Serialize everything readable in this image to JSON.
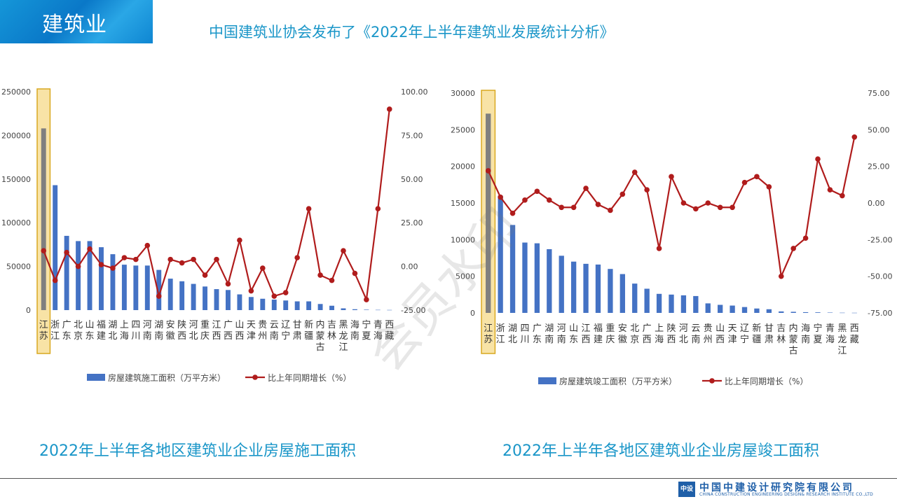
{
  "header": {
    "section": "建筑业",
    "subtitle": "中国建筑业协会发布了《2022年上半年建筑业发展统计分析》"
  },
  "watermark": "会员水印",
  "captions": {
    "left": "2022年上半年各地区建筑业企业房屋施工面积",
    "right": "2022年上半年各地区建筑业企业房屋竣工面积"
  },
  "footer": {
    "logo_mark": "中设",
    "company_cn": "中国中建设计研究院有限公司",
    "company_en": "CHINA CONSTRUCTION ENGINEERING DESIGN& RESEARCH INSTITUTE CO.,LTD"
  },
  "colors": {
    "bar": "#4472c4",
    "line": "#b01c1c",
    "highlight_fill": "#f8e3a6",
    "highlight_stroke": "#d9a820",
    "accent": "#1a96c8"
  },
  "chart_data": [
    {
      "type": "bar",
      "categories": [
        "江苏",
        "浙江",
        "广东",
        "北京",
        "山东",
        "福建",
        "湖北",
        "上海",
        "四川",
        "河南",
        "湖南",
        "安徽",
        "陕西",
        "河北",
        "重庆",
        "江西",
        "广西",
        "山西",
        "天津",
        "贵州",
        "云南",
        "辽宁",
        "甘肃",
        "新疆",
        "内蒙古",
        "吉林",
        "黑龙江",
        "海南",
        "宁夏",
        "青海",
        "西藏"
      ],
      "category_lines": [
        [
          "江",
          "苏"
        ],
        [
          "浙",
          "江"
        ],
        [
          "广",
          "东"
        ],
        [
          "北",
          "京"
        ],
        [
          "山",
          "东"
        ],
        [
          "福",
          "建"
        ],
        [
          "湖",
          "北"
        ],
        [
          "上",
          "海"
        ],
        [
          "四",
          "川"
        ],
        [
          "河",
          "南"
        ],
        [
          "湖",
          "南"
        ],
        [
          "安",
          "徽"
        ],
        [
          "陕",
          "西"
        ],
        [
          "河",
          "北"
        ],
        [
          "重",
          "庆"
        ],
        [
          "江",
          "西"
        ],
        [
          "广",
          "西"
        ],
        [
          "山",
          "西"
        ],
        [
          "天",
          "津"
        ],
        [
          "贵",
          "州"
        ],
        [
          "云",
          "南"
        ],
        [
          "辽",
          "宁"
        ],
        [
          "甘",
          "肃"
        ],
        [
          "新",
          "疆"
        ],
        [
          "内",
          "蒙",
          "古"
        ],
        [
          "吉",
          "林"
        ],
        [
          "黑",
          "龙",
          "江"
        ],
        [
          "海",
          "南"
        ],
        [
          "宁",
          "夏"
        ],
        [
          "青",
          "海"
        ],
        [
          "西",
          "藏"
        ]
      ],
      "series": [
        {
          "name": "房屋建筑施工面积（万平方米）",
          "kind": "bar",
          "axis": "left",
          "values": [
            208000,
            143000,
            85000,
            79000,
            79000,
            72000,
            64000,
            52000,
            51000,
            51000,
            46000,
            36000,
            33000,
            30000,
            27000,
            24000,
            23000,
            18000,
            15000,
            13000,
            12000,
            11000,
            10000,
            10000,
            7000,
            5000,
            2000,
            1000,
            500,
            300,
            200
          ]
        },
        {
          "name": "比上年同期增长（%）",
          "kind": "line",
          "axis": "right",
          "values": [
            9,
            -8,
            8,
            0,
            10,
            1,
            -1,
            5,
            4,
            12,
            -17,
            4,
            2,
            4,
            -5,
            4,
            -10,
            15,
            -14,
            -1,
            -17,
            -15,
            5,
            33,
            -5,
            -8,
            9,
            -4,
            -19,
            33,
            90
          ]
        }
      ],
      "y_left": {
        "min": 0,
        "max": 250000,
        "ticks": [
          "250000",
          "200000",
          "150000",
          "100000",
          "50000",
          "0"
        ]
      },
      "y_right": {
        "min": -25,
        "max": 100,
        "ticks": [
          "100.00",
          "75.00",
          "50.00",
          "25.00",
          "0.00",
          "-25.00"
        ]
      },
      "highlight_category": "江苏",
      "legend_position": "bottom"
    },
    {
      "type": "bar",
      "categories": [
        "江苏",
        "浙江",
        "湖北",
        "四川",
        "广东",
        "湖南",
        "河南",
        "山东",
        "江西",
        "福建",
        "重庆",
        "安徽",
        "北京",
        "广西",
        "上海",
        "陕西",
        "河北",
        "云南",
        "贵州",
        "山西",
        "天津",
        "辽宁",
        "新疆",
        "甘肃",
        "吉林",
        "内蒙古",
        "海南",
        "宁夏",
        "青海",
        "黑龙江",
        "西藏"
      ],
      "category_lines": [
        [
          "江",
          "苏"
        ],
        [
          "浙",
          "江"
        ],
        [
          "湖",
          "北"
        ],
        [
          "四",
          "川"
        ],
        [
          "广",
          "东"
        ],
        [
          "湖",
          "南"
        ],
        [
          "河",
          "南"
        ],
        [
          "山",
          "东"
        ],
        [
          "江",
          "西"
        ],
        [
          "福",
          "建"
        ],
        [
          "重",
          "庆"
        ],
        [
          "安",
          "徽"
        ],
        [
          "北",
          "京"
        ],
        [
          "广",
          "西"
        ],
        [
          "上",
          "海"
        ],
        [
          "陕",
          "西"
        ],
        [
          "河",
          "北"
        ],
        [
          "云",
          "南"
        ],
        [
          "贵",
          "州"
        ],
        [
          "山",
          "西"
        ],
        [
          "天",
          "津"
        ],
        [
          "辽",
          "宁"
        ],
        [
          "新",
          "疆"
        ],
        [
          "甘",
          "肃"
        ],
        [
          "吉",
          "林"
        ],
        [
          "内",
          "蒙",
          "古"
        ],
        [
          "海",
          "南"
        ],
        [
          "宁",
          "夏"
        ],
        [
          "青",
          "海"
        ],
        [
          "黑",
          "龙",
          "江"
        ],
        [
          "西",
          "藏"
        ]
      ],
      "series": [
        {
          "name": "房屋建筑竣工面积（万平方米）",
          "kind": "bar",
          "axis": "left",
          "values": [
            27200,
            16000,
            12000,
            9600,
            9500,
            8700,
            7800,
            7000,
            6700,
            6600,
            6000,
            5300,
            4000,
            3300,
            2600,
            2500,
            2400,
            2300,
            1300,
            1100,
            1000,
            800,
            600,
            500,
            200,
            150,
            100,
            80,
            50,
            30,
            20
          ]
        },
        {
          "name": "比上年同期增长（%）",
          "kind": "line",
          "axis": "right",
          "values": [
            22,
            4,
            -7,
            2,
            8,
            2,
            -3,
            -3,
            10,
            -1,
            -5,
            6,
            21,
            9,
            -31,
            18,
            0,
            -4,
            0,
            -3,
            -3,
            14,
            18,
            11,
            -50,
            -31,
            -24,
            30,
            9,
            5,
            45
          ]
        }
      ],
      "y_left": {
        "min": 0,
        "max": 30000,
        "ticks": [
          "30000",
          "25000",
          "20000",
          "15000",
          "10000",
          "5000",
          "0"
        ]
      },
      "y_right": {
        "min": -75,
        "max": 75,
        "ticks": [
          "75.00",
          "50.00",
          "25.00",
          "0.00",
          "-25.00",
          "-50.00",
          "-75.00"
        ]
      },
      "highlight_category": "江苏",
      "legend_position": "bottom"
    }
  ]
}
